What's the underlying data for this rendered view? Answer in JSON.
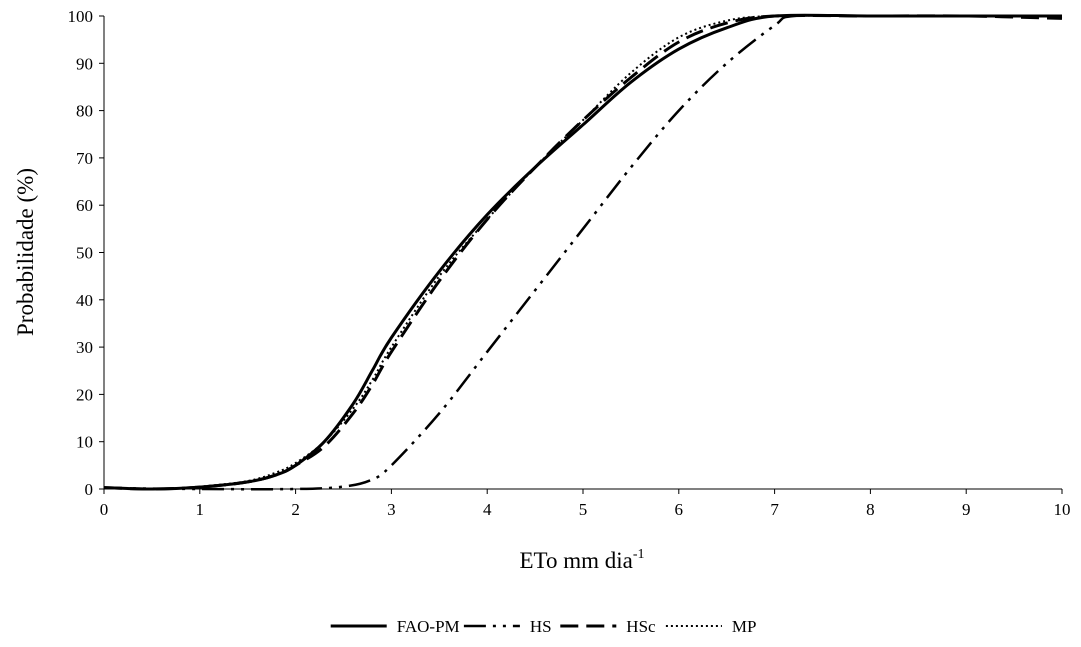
{
  "chart_data": {
    "type": "line",
    "xlabel": "ETo mm dia",
    "xlabel_superscript": "-1",
    "ylabel": "Probabilidade  (%)",
    "xlim": [
      0,
      10
    ],
    "ylim": [
      0,
      100
    ],
    "x_ticks": [
      0,
      1,
      2,
      3,
      4,
      5,
      6,
      7,
      8,
      9,
      10
    ],
    "y_ticks": [
      0,
      10,
      20,
      30,
      40,
      50,
      60,
      70,
      80,
      90,
      100
    ],
    "grid": false,
    "legend_position": "bottom",
    "series": [
      {
        "name": "FAO-PM",
        "style": "solid",
        "points": [
          [
            0,
            0.3
          ],
          [
            0.5,
            0
          ],
          [
            1,
            0.4
          ],
          [
            1.5,
            1.5
          ],
          [
            1.8,
            3
          ],
          [
            2,
            5
          ],
          [
            2.3,
            10
          ],
          [
            2.6,
            18
          ],
          [
            2.8,
            25
          ],
          [
            3,
            32
          ],
          [
            3.5,
            46
          ],
          [
            4,
            58
          ],
          [
            4.5,
            68
          ],
          [
            5,
            77
          ],
          [
            5.5,
            86
          ],
          [
            6,
            93
          ],
          [
            6.5,
            97.5
          ],
          [
            7,
            100
          ],
          [
            8,
            100
          ],
          [
            9,
            100
          ],
          [
            10,
            100
          ]
        ]
      },
      {
        "name": "HS",
        "style": "dash-dot-dot",
        "points": [
          [
            0,
            0.2
          ],
          [
            1,
            0
          ],
          [
            2,
            0
          ],
          [
            2.5,
            0.5
          ],
          [
            2.8,
            2
          ],
          [
            3,
            5
          ],
          [
            3.5,
            16
          ],
          [
            4,
            29
          ],
          [
            4.5,
            42
          ],
          [
            5,
            55
          ],
          [
            5.5,
            68
          ],
          [
            6,
            80
          ],
          [
            6.5,
            90
          ],
          [
            7,
            98
          ],
          [
            7.2,
            100
          ],
          [
            8,
            100
          ],
          [
            9,
            100
          ],
          [
            10,
            100
          ]
        ]
      },
      {
        "name": "HSc",
        "style": "dashed",
        "points": [
          [
            0,
            0.3
          ],
          [
            0.5,
            0
          ],
          [
            1,
            0.4
          ],
          [
            1.5,
            1.5
          ],
          [
            1.8,
            3
          ],
          [
            2,
            5
          ],
          [
            2.3,
            9
          ],
          [
            2.6,
            16
          ],
          [
            2.8,
            22
          ],
          [
            3,
            29
          ],
          [
            3.5,
            44
          ],
          [
            4,
            57
          ],
          [
            4.5,
            68
          ],
          [
            5,
            78
          ],
          [
            5.5,
            87
          ],
          [
            6,
            94.5
          ],
          [
            6.5,
            98.5
          ],
          [
            7,
            100
          ],
          [
            8,
            100
          ],
          [
            9,
            100
          ],
          [
            10,
            99.5
          ]
        ]
      },
      {
        "name": "MP",
        "style": "dotted",
        "points": [
          [
            0,
            0.3
          ],
          [
            0.5,
            0
          ],
          [
            1,
            0.5
          ],
          [
            1.5,
            1.7
          ],
          [
            1.8,
            3.5
          ],
          [
            2,
            5.5
          ],
          [
            2.3,
            10
          ],
          [
            2.6,
            17
          ],
          [
            2.8,
            23
          ],
          [
            3,
            30
          ],
          [
            3.5,
            45
          ],
          [
            4,
            57
          ],
          [
            4.5,
            68
          ],
          [
            5,
            78
          ],
          [
            5.5,
            88
          ],
          [
            6,
            95.5
          ],
          [
            6.5,
            99
          ],
          [
            7,
            100
          ],
          [
            8,
            100
          ],
          [
            9,
            100
          ],
          [
            10,
            100
          ]
        ]
      }
    ]
  },
  "colors": {
    "line": "#000000",
    "background": "#ffffff"
  }
}
